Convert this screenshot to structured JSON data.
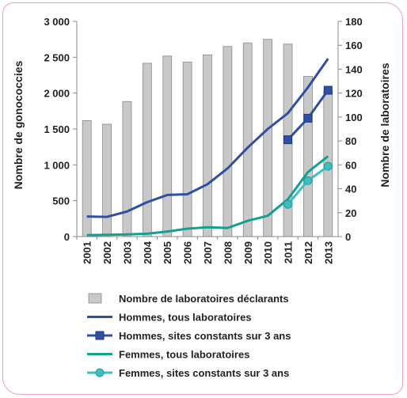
{
  "chart_data": {
    "type": "bar+line",
    "categories": [
      "2001",
      "2002",
      "2003",
      "2004",
      "2005",
      "2006",
      "2007",
      "2008",
      "2009",
      "2010",
      "2011",
      "2012",
      "2013"
    ],
    "ylabel": "Nombre de gonococcies",
    "y2label": "Nombre de laboratoires",
    "ylim": [
      0,
      3000
    ],
    "y2lim": [
      0,
      180
    ],
    "yticks": [
      "0",
      "500",
      "1 000",
      "1 500",
      "2 000",
      "2 500",
      "3 000"
    ],
    "y2ticks": [
      "0",
      "20",
      "40",
      "60",
      "80",
      "100",
      "120",
      "140",
      "160",
      "180"
    ],
    "legend_position": "bottom",
    "series": [
      {
        "name": "Nombre de laboratoires déclarants",
        "kind": "bar",
        "axis": "y2",
        "color": "#c8c8c8",
        "values": [
          97,
          94,
          113,
          145,
          151,
          146,
          152,
          159,
          162,
          165,
          161,
          134,
          122
        ]
      },
      {
        "name": "Hommes, tous laboratoires",
        "kind": "line",
        "axis": "y",
        "color": "#2e4fa3",
        "values": [
          280,
          275,
          350,
          480,
          580,
          590,
          730,
          950,
          1240,
          1500,
          1720,
          2080,
          2480
        ]
      },
      {
        "name": "Hommes, sites constants sur 3 ans",
        "kind": "line-marker",
        "marker": "square",
        "axis": "y",
        "color": "#2e4fa3",
        "values": [
          null,
          null,
          null,
          null,
          null,
          null,
          null,
          null,
          null,
          null,
          1350,
          1650,
          2040
        ]
      },
      {
        "name": "Femmes, tous laboratoires",
        "kind": "line",
        "axis": "y",
        "color": "#14a090",
        "values": [
          20,
          25,
          30,
          40,
          70,
          110,
          130,
          120,
          220,
          290,
          520,
          900,
          1120
        ]
      },
      {
        "name": "Femmes, sites constants sur 3 ans",
        "kind": "line-marker",
        "marker": "diamond",
        "axis": "y",
        "color": "#3bbfc0",
        "values": [
          null,
          null,
          null,
          null,
          null,
          null,
          null,
          null,
          null,
          null,
          450,
          780,
          980
        ]
      }
    ]
  }
}
